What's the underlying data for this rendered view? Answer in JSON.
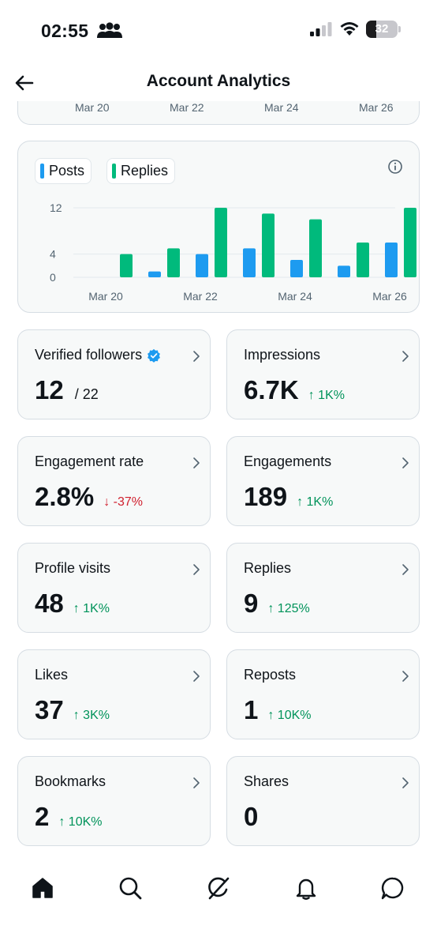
{
  "status_bar": {
    "time": "02:55",
    "battery_level": "32",
    "battery_fraction": 0.32,
    "icons": [
      "people-icon",
      "signal-icon",
      "wifi-icon",
      "battery-icon"
    ]
  },
  "header": {
    "title": "Account Analytics",
    "back_icon": "arrow-left-icon"
  },
  "previous_chart": {
    "x_ticks": [
      "Mar 20",
      "Mar 22",
      "Mar 24",
      "Mar 26"
    ]
  },
  "legend": {
    "posts_label": "Posts",
    "replies_label": "Replies"
  },
  "colors": {
    "posts": "#1d9bf0",
    "replies": "#00ba7c",
    "positive": "#00935a",
    "negative": "#d0202e",
    "verified": "#1d9bf0"
  },
  "chart_data": {
    "type": "bar",
    "categories": [
      "Mar 20",
      "Mar 21",
      "Mar 22",
      "Mar 23",
      "Mar 24",
      "Mar 25",
      "Mar 26"
    ],
    "series": [
      {
        "name": "Posts",
        "values": [
          0,
          1,
          4,
          5,
          3,
          2,
          6
        ]
      },
      {
        "name": "Replies",
        "values": [
          4,
          5,
          12,
          11,
          10,
          6,
          12
        ]
      }
    ],
    "y_ticks": [
      "12",
      "4",
      "0"
    ],
    "y_tick_values": [
      12,
      4,
      0
    ],
    "x_tick_labels": [
      "Mar 20",
      "Mar 22",
      "Mar 24",
      "Mar 26"
    ],
    "ylim": [
      0,
      12
    ],
    "legend_position": "top-left",
    "grid": true
  },
  "metrics": [
    {
      "label": "Verified followers",
      "value": "12",
      "secondary": "/ 22",
      "change": "",
      "direction": "",
      "verified": true
    },
    {
      "label": "Impressions",
      "value": "6.7K",
      "secondary": "",
      "change": "↑ 1K%",
      "direction": "up",
      "verified": false
    },
    {
      "label": "Engagement rate",
      "value": "2.8%",
      "secondary": "",
      "change": "↓ -37%",
      "direction": "down",
      "verified": false
    },
    {
      "label": "Engagements",
      "value": "189",
      "secondary": "",
      "change": "↑ 1K%",
      "direction": "up",
      "verified": false
    },
    {
      "label": "Profile visits",
      "value": "48",
      "secondary": "",
      "change": "↑ 1K%",
      "direction": "up",
      "verified": false
    },
    {
      "label": "Replies",
      "value": "9",
      "secondary": "",
      "change": "↑ 125%",
      "direction": "up",
      "verified": false
    },
    {
      "label": "Likes",
      "value": "37",
      "secondary": "",
      "change": "↑ 3K%",
      "direction": "up",
      "verified": false
    },
    {
      "label": "Reposts",
      "value": "1",
      "secondary": "",
      "change": "↑ 10K%",
      "direction": "up",
      "verified": false
    },
    {
      "label": "Bookmarks",
      "value": "2",
      "secondary": "",
      "change": "↑ 10K%",
      "direction": "up",
      "verified": false
    },
    {
      "label": "Shares",
      "value": "0",
      "secondary": "",
      "change": "",
      "direction": "",
      "verified": false
    }
  ],
  "bottom_nav": {
    "items": [
      "home-icon",
      "search-icon",
      "grok-icon",
      "notifications-icon",
      "messages-icon"
    ]
  }
}
